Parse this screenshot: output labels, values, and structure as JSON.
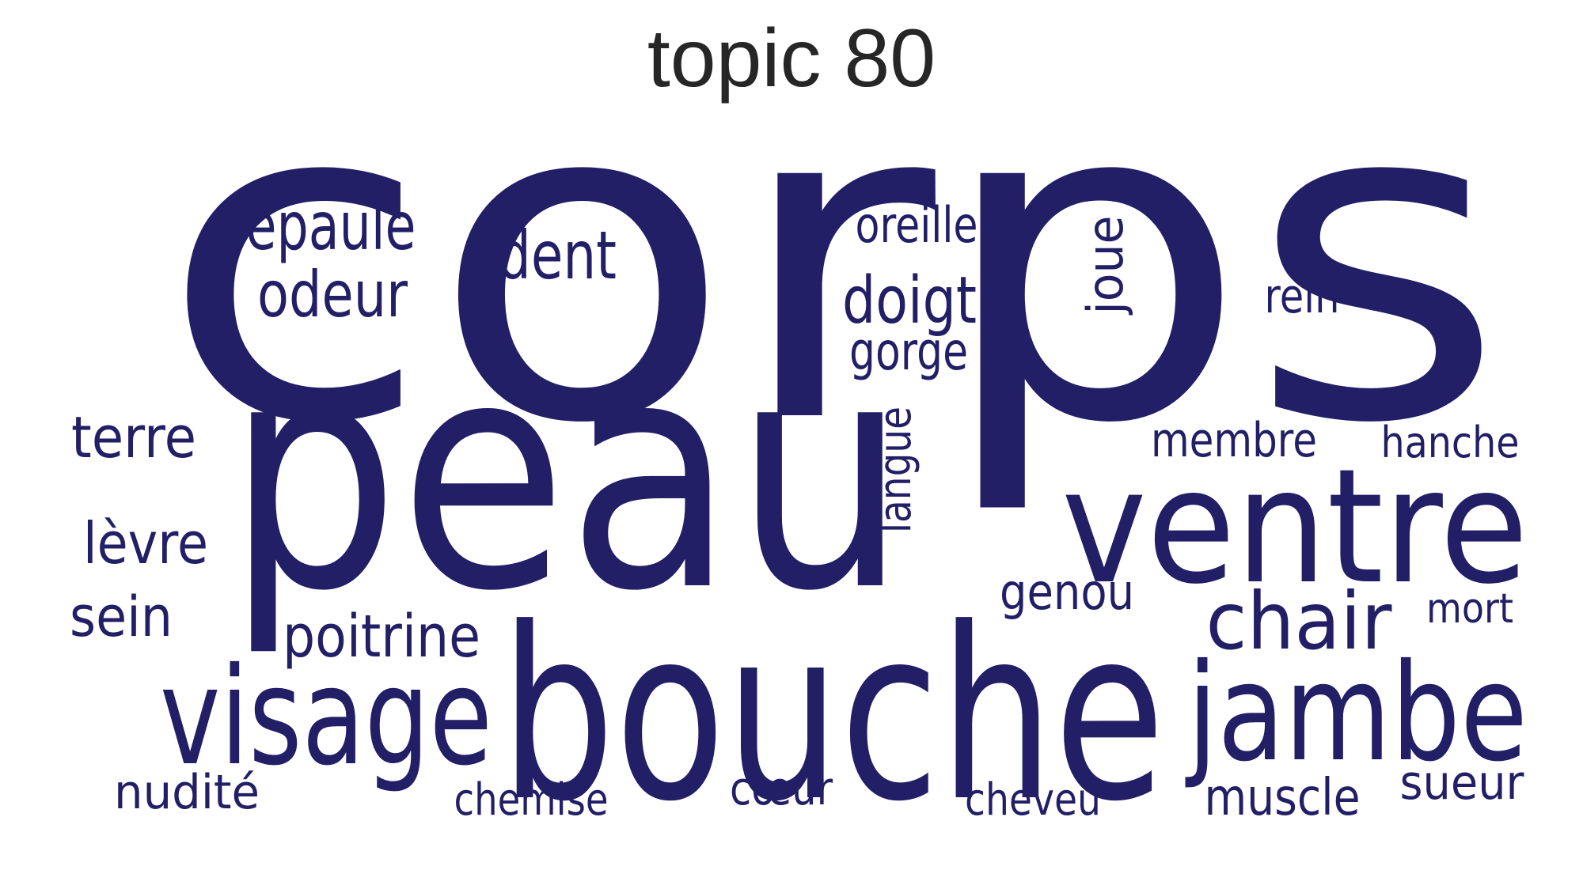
{
  "title": "topic 80",
  "word_color": "#221f66",
  "title_color": "#262626",
  "words": [
    {
      "text": "corps"
    },
    {
      "text": "peau"
    },
    {
      "text": "bouche"
    },
    {
      "text": "ventre"
    },
    {
      "text": "jambe"
    },
    {
      "text": "visage"
    },
    {
      "text": "chair"
    },
    {
      "text": "épaule"
    },
    {
      "text": "dent"
    },
    {
      "text": "odeur"
    },
    {
      "text": "doigt"
    },
    {
      "text": "oreille"
    },
    {
      "text": "gorge"
    },
    {
      "text": "joue"
    },
    {
      "text": "rein"
    },
    {
      "text": "terre"
    },
    {
      "text": "lèvre"
    },
    {
      "text": "sein"
    },
    {
      "text": "poitrine"
    },
    {
      "text": "langue"
    },
    {
      "text": "membre"
    },
    {
      "text": "hanche"
    },
    {
      "text": "genou"
    },
    {
      "text": "mort"
    },
    {
      "text": "nudité"
    },
    {
      "text": "chemise"
    },
    {
      "text": "cœur"
    },
    {
      "text": "cheveu"
    },
    {
      "text": "muscle"
    },
    {
      "text": "sueur"
    }
  ]
}
